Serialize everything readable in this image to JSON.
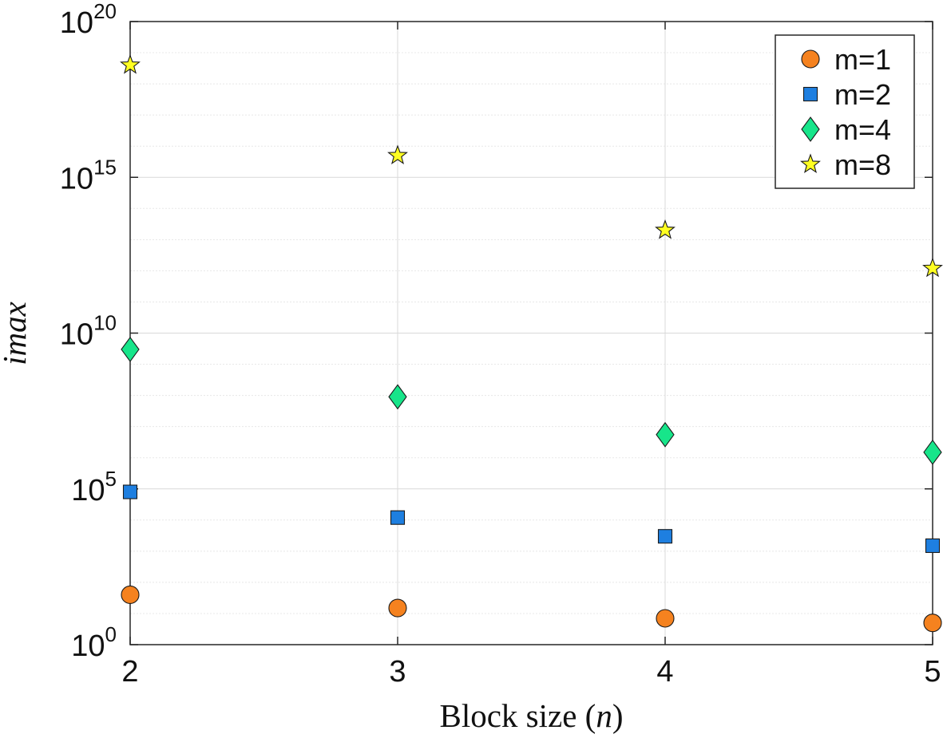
{
  "chart_data": {
    "type": "scatter",
    "title": "",
    "xlabel": "Block size (n)",
    "xlabel_parts": {
      "prefix": "Block size (",
      "variable": "n",
      "suffix": ")"
    },
    "ylabel": "imax",
    "x": [
      2,
      3,
      4,
      5
    ],
    "xlim": [
      2,
      5
    ],
    "x_ticks": [
      "2",
      "3",
      "4",
      "5"
    ],
    "yscale": "log",
    "ylim": [
      1,
      1e+20
    ],
    "y_ticks": [
      {
        "base": "10",
        "exp": "0"
      },
      {
        "base": "10",
        "exp": "5"
      },
      {
        "base": "10",
        "exp": "10"
      },
      {
        "base": "10",
        "exp": "15"
      },
      {
        "base": "10",
        "exp": "20"
      }
    ],
    "grid": true,
    "legend_position": "top-right",
    "series": [
      {
        "name": "m=1",
        "marker": "circle",
        "color": "#f5821f",
        "values": [
          40,
          15,
          7,
          5
        ]
      },
      {
        "name": "m=2",
        "marker": "square",
        "color": "#1e7fe0",
        "values": [
          80000,
          12000,
          3000,
          1500
        ]
      },
      {
        "name": "m=4",
        "marker": "diamond",
        "color": "#17e58a",
        "values": [
          3000000000,
          90000000,
          5500000,
          1500000
        ]
      },
      {
        "name": "m=8",
        "marker": "star",
        "color": "#ffff22",
        "values": [
          4e+18,
          5000000000000000.0,
          20000000000000.0,
          1200000000000.0
        ]
      }
    ]
  }
}
